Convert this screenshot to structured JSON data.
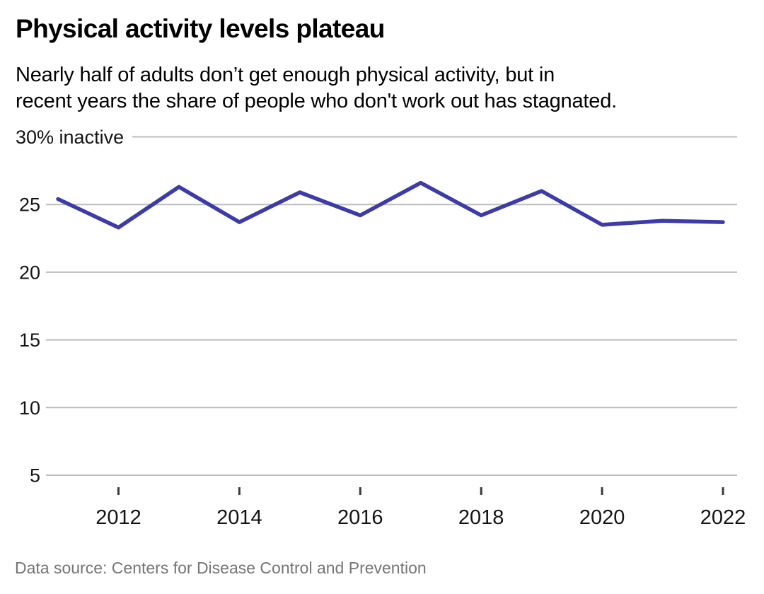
{
  "header": {
    "title": "Physical activity levels plateau",
    "subtitle_line1": "Nearly half of adults don’t get enough physical activity, but in",
    "subtitle_line2": "recent years the share of people who don't work out has stagnated."
  },
  "chart_data": {
    "type": "line",
    "title": "Physical activity levels plateau",
    "x": [
      2011,
      2012,
      2013,
      2014,
      2015,
      2016,
      2017,
      2018,
      2019,
      2020,
      2021,
      2022
    ],
    "values": [
      25.4,
      23.3,
      26.3,
      23.7,
      25.9,
      24.2,
      26.6,
      24.2,
      26.0,
      23.5,
      23.8,
      23.7
    ],
    "ylabel": "30% inactive",
    "xlabel": "",
    "ylim": [
      5,
      30
    ],
    "xlim": [
      2011,
      2022
    ],
    "grid": "horizontal-only",
    "legend": "none",
    "yticks": [
      {
        "value": 30,
        "label": "30% inactive"
      },
      {
        "value": 25,
        "label": "25"
      },
      {
        "value": 20,
        "label": "20"
      },
      {
        "value": 15,
        "label": "15"
      },
      {
        "value": 10,
        "label": "10"
      },
      {
        "value": 5,
        "label": "5"
      }
    ],
    "xticks": [
      {
        "value": 2012,
        "label": "2012"
      },
      {
        "value": 2014,
        "label": "2014"
      },
      {
        "value": 2016,
        "label": "2016"
      },
      {
        "value": 2018,
        "label": "2018"
      },
      {
        "value": 2020,
        "label": "2020"
      },
      {
        "value": 2022,
        "label": "2022"
      }
    ],
    "line_color": "#3d3ba8"
  },
  "footer": {
    "source": "Data source: Centers for Disease Control and Prevention"
  },
  "colors": {
    "line": "#3d3ba8",
    "grid": "#bdbdbd",
    "tick_mark": "#3a3a3a",
    "axis_text": "#141414",
    "muted_text": "#757575",
    "background": "#ffffff"
  }
}
